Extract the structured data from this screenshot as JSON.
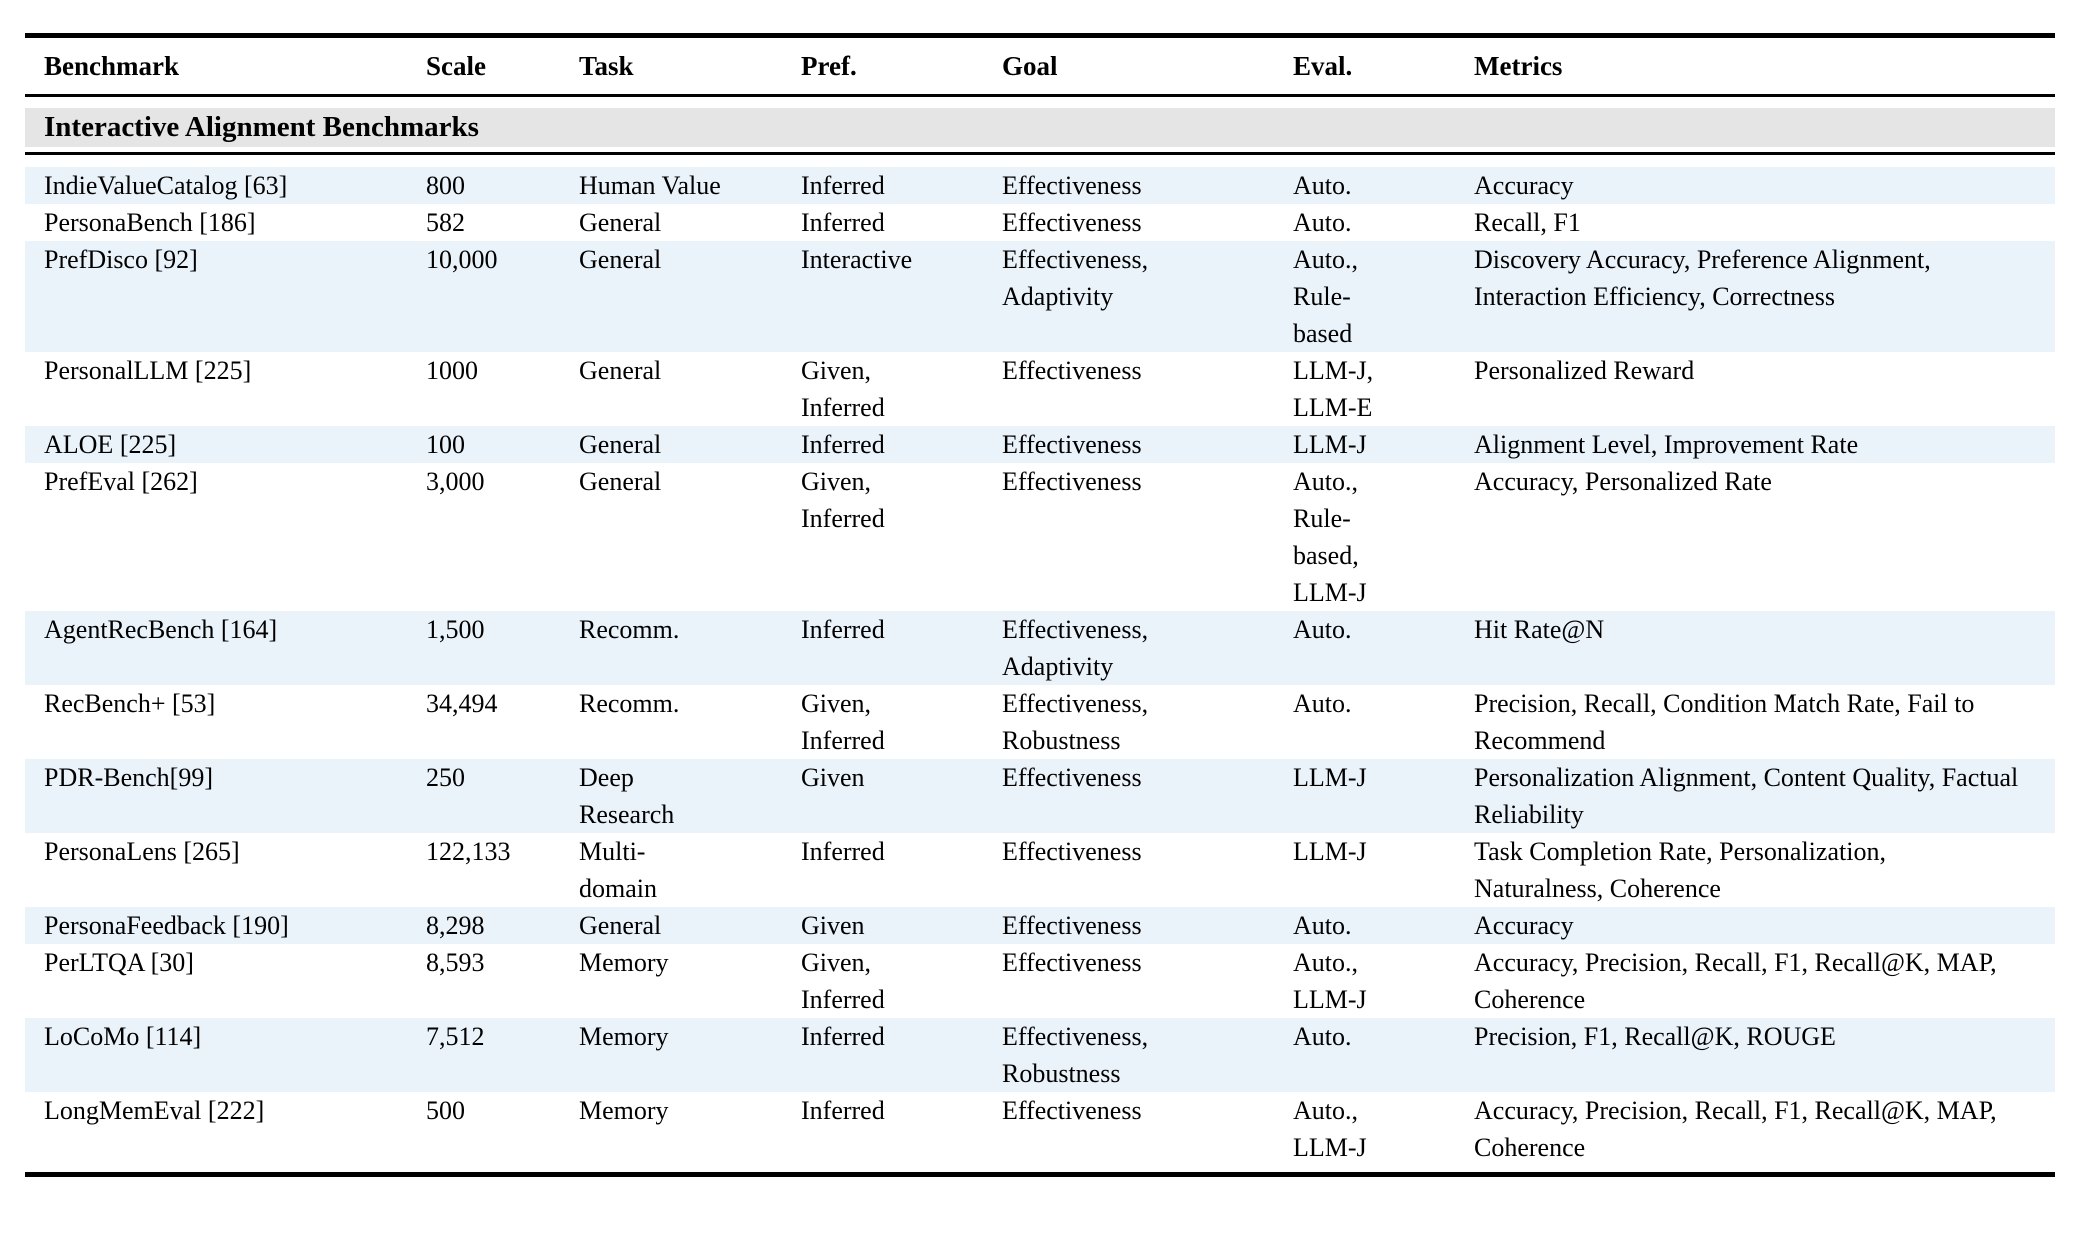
{
  "table": {
    "section_header": "Interactive Alignment Benchmarks",
    "colors": {
      "row_stripe": "#eaf2fa",
      "section_bg": "#e5e5e5",
      "rule": "#000000",
      "text": "#000000"
    },
    "columns": [
      {
        "id": "benchmark",
        "label": "Benchmark"
      },
      {
        "id": "scale",
        "label": "Scale"
      },
      {
        "id": "task",
        "label": "Task"
      },
      {
        "id": "pref",
        "label": "Pref."
      },
      {
        "id": "goal",
        "label": "Goal"
      },
      {
        "id": "eval",
        "label": "Eval."
      },
      {
        "id": "metrics",
        "label": "Metrics"
      }
    ],
    "rows": [
      {
        "benchmark": "IndieValueCatalog [63]",
        "scale": "800",
        "task": "Human Value",
        "pref": "Inferred",
        "goal": "Effectiveness",
        "eval": "Auto.",
        "metrics": "Accuracy"
      },
      {
        "benchmark": "PersonaBench [186]",
        "scale": "582",
        "task": "General",
        "pref": "Inferred",
        "goal": "Effectiveness",
        "eval": "Auto.",
        "metrics": "Recall, F1"
      },
      {
        "benchmark": "PrefDisco [92]",
        "scale": "10,000",
        "task": "General",
        "pref": "Interactive",
        "goal": "Effectiveness, Adaptivity",
        "eval": "Auto., Rule-based",
        "metrics": "Discovery Accuracy, Preference Alignment, Interaction Efficiency, Correctness"
      },
      {
        "benchmark": "PersonalLLM [225]",
        "scale": "1000",
        "task": "General",
        "pref": "Given, Inferred",
        "goal": "Effectiveness",
        "eval": "LLM-J, LLM-E",
        "metrics": "Personalized Reward"
      },
      {
        "benchmark": "ALOE [225]",
        "scale": "100",
        "task": "General",
        "pref": "Inferred",
        "goal": "Effectiveness",
        "eval": "LLM-J",
        "metrics": "Alignment Level, Improvement Rate"
      },
      {
        "benchmark": "PrefEval [262]",
        "scale": "3,000",
        "task": "General",
        "pref": "Given, Inferred",
        "goal": "Effectiveness",
        "eval": "Auto., Rule-based, LLM-J",
        "metrics": "Accuracy, Personalized Rate"
      },
      {
        "benchmark": "AgentRecBench [164]",
        "scale": "1,500",
        "task": "Recomm.",
        "pref": "Inferred",
        "goal": "Effectiveness, Adaptivity",
        "eval": "Auto.",
        "metrics": "Hit Rate@N"
      },
      {
        "benchmark": "RecBench+ [53]",
        "scale": "34,494",
        "task": "Recomm.",
        "pref": "Given, Inferred",
        "goal": "Effectiveness, Robustness",
        "eval": "Auto.",
        "metrics": "Precision, Recall, Condition Match Rate, Fail to Recommend"
      },
      {
        "benchmark": "PDR-Bench[99]",
        "scale": "250",
        "task": "Deep Research",
        "pref": "Given",
        "goal": "Effectiveness",
        "eval": "LLM-J",
        "metrics": "Personalization Alignment, Content Quality, Factual Reliability"
      },
      {
        "benchmark": "PersonaLens [265]",
        "scale": "122,133",
        "task": "Multi-domain",
        "pref": "Inferred",
        "goal": "Effectiveness",
        "eval": "LLM-J",
        "metrics": "Task Completion Rate, Personalization, Naturalness, Coherence"
      },
      {
        "benchmark": "PersonaFeedback [190]",
        "scale": "8,298",
        "task": "General",
        "pref": "Given",
        "goal": "Effectiveness",
        "eval": "Auto.",
        "metrics": "Accuracy"
      },
      {
        "benchmark": "PerLTQA [30]",
        "scale": "8,593",
        "task": "Memory",
        "pref": "Given, Inferred",
        "goal": "Effectiveness",
        "eval": "Auto., LLM-J",
        "metrics": "Accuracy, Precision, Recall, F1, Recall@K, MAP, Coherence"
      },
      {
        "benchmark": "LoCoMo [114]",
        "scale": "7,512",
        "task": "Memory",
        "pref": "Inferred",
        "goal": "Effectiveness, Robustness",
        "eval": "Auto.",
        "metrics": "Precision, F1, Recall@K, ROUGE"
      },
      {
        "benchmark": "LongMemEval [222]",
        "scale": "500",
        "task": "Memory",
        "pref": "Inferred",
        "goal": "Effectiveness",
        "eval": "Auto., LLM-J",
        "metrics": "Accuracy, Precision, Recall, F1, Recall@K, MAP, Coherence"
      }
    ]
  }
}
